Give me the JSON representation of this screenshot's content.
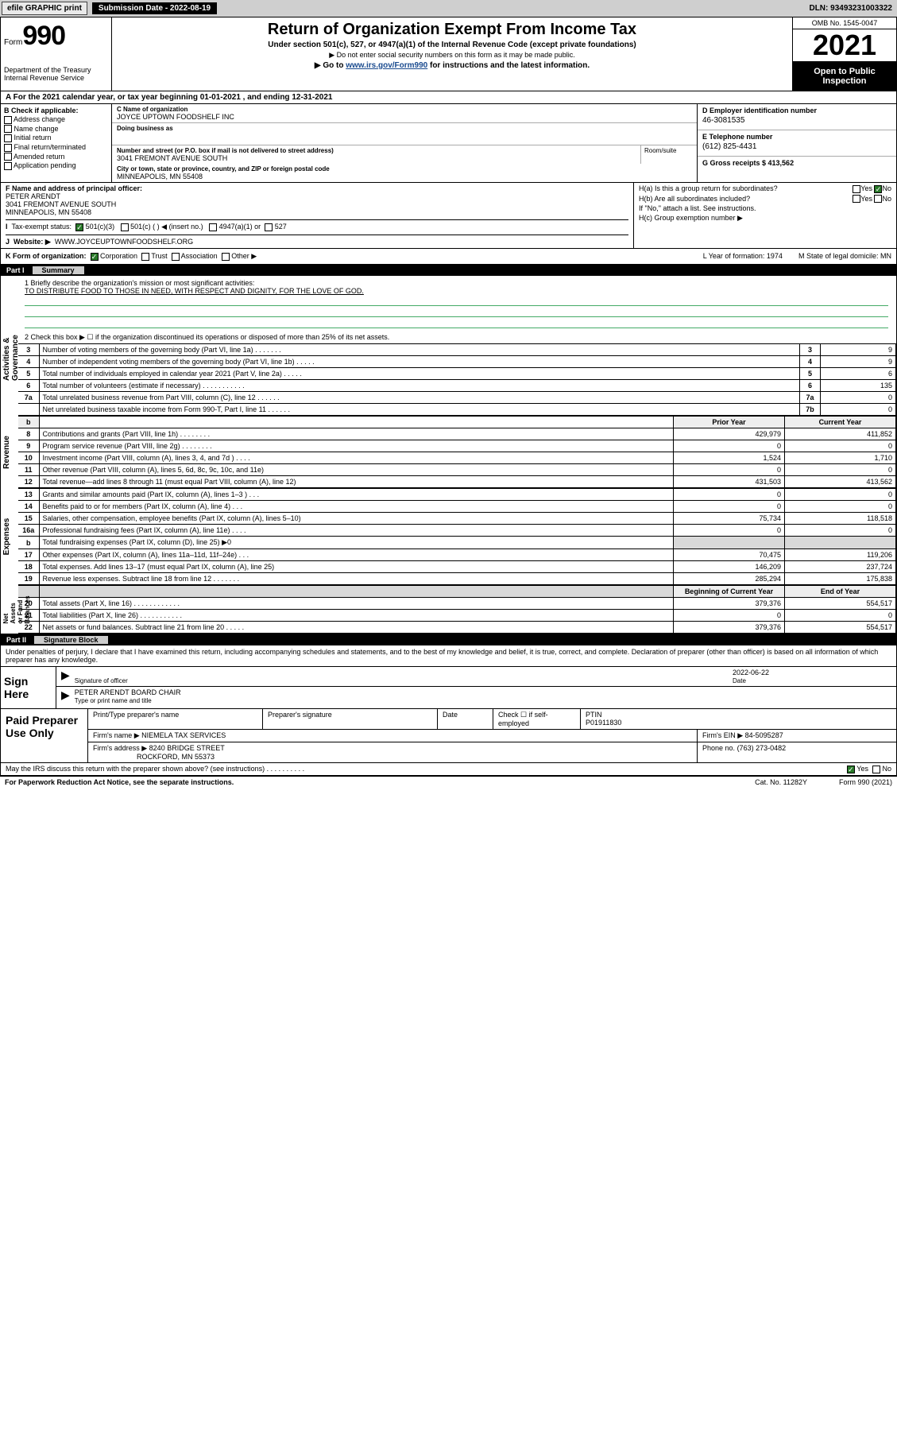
{
  "topbar": {
    "efile": "efile GRAPHIC print",
    "submission_label": "Submission Date - 2022-08-19",
    "dln_label": "DLN: 93493231003322"
  },
  "header": {
    "form_word": "Form",
    "form_num": "990",
    "dept": "Department of the Treasury\nInternal Revenue Service",
    "title": "Return of Organization Exempt From Income Tax",
    "subtitle": "Under section 501(c), 527, or 4947(a)(1) of the Internal Revenue Code (except private foundations)",
    "note1": "▶ Do not enter social security numbers on this form as it may be made public.",
    "note2_pre": "▶ Go to ",
    "note2_link": "www.irs.gov/Form990",
    "note2_post": " for instructions and the latest information.",
    "omb": "OMB No. 1545-0047",
    "year": "2021",
    "inspect": "Open to Public Inspection"
  },
  "lineA": "A For the 2021 calendar year, or tax year beginning 01-01-2021   , and ending 12-31-2021",
  "colB": {
    "header": "B Check if applicable:",
    "opts": [
      "Address change",
      "Name change",
      "Initial return",
      "Final return/terminated",
      "Amended return",
      "Application pending"
    ]
  },
  "colC": {
    "name_label": "C Name of organization",
    "name": "JOYCE UPTOWN FOODSHELF INC",
    "dba_label": "Doing business as",
    "dba": "",
    "street_label": "Number and street (or P.O. box if mail is not delivered to street address)",
    "street": "3041 FREMONT AVENUE SOUTH",
    "room_label": "Room/suite",
    "city_label": "City or town, state or province, country, and ZIP or foreign postal code",
    "city": "MINNEAPOLIS, MN  55408"
  },
  "colD": {
    "d_label": "D Employer identification number",
    "d_val": "46-3081535",
    "e_label": "E Telephone number",
    "e_val": "(612) 825-4431",
    "g_label": "G Gross receipts $ 413,562"
  },
  "F": {
    "label": "F  Name and address of principal officer:",
    "name": "PETER ARENDT",
    "addr1": "3041 FREMONT AVENUE SOUTH",
    "addr2": "MINNEAPOLIS, MN  55408"
  },
  "I": {
    "label": "Tax-exempt status:",
    "o1": "501(c)(3)",
    "o2": "501(c) (   ) ◀ (insert no.)",
    "o3": "4947(a)(1) or",
    "o4": "527"
  },
  "J": {
    "label": "Website: ▶",
    "val": "WWW.JOYCEUPTOWNFOODSHELF.ORG"
  },
  "H": {
    "ha": "H(a)  Is this a group return for subordinates?",
    "ha_no": "No",
    "hb": "H(b)  Are all subordinates included?",
    "hb_note": "If \"No,\" attach a list. See instructions.",
    "hc": "H(c)  Group exemption number ▶"
  },
  "K": {
    "label": "K Form of organization:",
    "opts": [
      "Corporation",
      "Trust",
      "Association",
      "Other ▶"
    ],
    "L": "L Year of formation: 1974",
    "M": "M State of legal domicile: MN"
  },
  "partI": {
    "label": "Part I",
    "title": "Summary"
  },
  "mission": {
    "q1": "1  Briefly describe the organization's mission or most significant activities:",
    "text": "TO DISTRIBUTE FOOD TO THOSE IN NEED, WITH RESPECT AND DIGNITY, FOR THE LOVE OF GOD.",
    "q2": "2   Check this box ▶ ☐  if the organization discontinued its operations or disposed of more than 25% of its net assets."
  },
  "gov_rows": [
    {
      "n": "3",
      "d": "Number of voting members of the governing body (Part VI, line 1a)   .   .   .   .   .   .   .",
      "box": "3",
      "v": "9"
    },
    {
      "n": "4",
      "d": "Number of independent voting members of the governing body (Part VI, line 1b)  .   .   .   .   .",
      "box": "4",
      "v": "9"
    },
    {
      "n": "5",
      "d": "Total number of individuals employed in calendar year 2021 (Part V, line 2a)   .   .   .   .   .",
      "box": "5",
      "v": "6"
    },
    {
      "n": "6",
      "d": "Total number of volunteers (estimate if necessary)  .   .   .   .   .   .   .   .   .   .   .",
      "box": "6",
      "v": "135"
    },
    {
      "n": "7a",
      "d": "Total unrelated business revenue from Part VIII, column (C), line 12  .   .   .   .   .   .",
      "box": "7a",
      "v": "0"
    },
    {
      "n": "",
      "d": "Net unrelated business taxable income from Form 990-T, Part I, line 11  .   .   .   .   .   .",
      "box": "7b",
      "v": "0"
    }
  ],
  "rev_head": {
    "b": "b",
    "prior": "Prior Year",
    "curr": "Current Year"
  },
  "rev_rows": [
    {
      "n": "8",
      "d": "Contributions and grants (Part VIII, line 1h)   .   .   .   .   .   .   .   .",
      "p": "429,979",
      "c": "411,852"
    },
    {
      "n": "9",
      "d": "Program service revenue (Part VIII, line 2g)   .   .   .   .   .   .   .   .",
      "p": "0",
      "c": "0"
    },
    {
      "n": "10",
      "d": "Investment income (Part VIII, column (A), lines 3, 4, and 7d )   .   .   .   .",
      "p": "1,524",
      "c": "1,710"
    },
    {
      "n": "11",
      "d": "Other revenue (Part VIII, column (A), lines 5, 6d, 8c, 9c, 10c, and 11e)",
      "p": "0",
      "c": "0"
    },
    {
      "n": "12",
      "d": "Total revenue—add lines 8 through 11 (must equal Part VIII, column (A), line 12)",
      "p": "431,503",
      "c": "413,562"
    }
  ],
  "exp_rows": [
    {
      "n": "13",
      "d": "Grants and similar amounts paid (Part IX, column (A), lines 1–3 )   .   .   .",
      "p": "0",
      "c": "0"
    },
    {
      "n": "14",
      "d": "Benefits paid to or for members (Part IX, column (A), line 4)   .   .   .",
      "p": "0",
      "c": "0"
    },
    {
      "n": "15",
      "d": "Salaries, other compensation, employee benefits (Part IX, column (A), lines 5–10)",
      "p": "75,734",
      "c": "118,518"
    },
    {
      "n": "16a",
      "d": "Professional fundraising fees (Part IX, column (A), line 11e)   .   .   .   .",
      "p": "0",
      "c": "0"
    },
    {
      "n": "b",
      "d": "Total fundraising expenses (Part IX, column (D), line 25) ▶0",
      "p": "",
      "c": "",
      "shade": true
    },
    {
      "n": "17",
      "d": "Other expenses (Part IX, column (A), lines 11a–11d, 11f–24e)   .   .   .",
      "p": "70,475",
      "c": "119,206"
    },
    {
      "n": "18",
      "d": "Total expenses. Add lines 13–17 (must equal Part IX, column (A), line 25)",
      "p": "146,209",
      "c": "237,724"
    },
    {
      "n": "19",
      "d": "Revenue less expenses. Subtract line 18 from line 12  .   .   .   .   .   .   .",
      "p": "285,294",
      "c": "175,838"
    }
  ],
  "na_head": {
    "prior": "Beginning of Current Year",
    "curr": "End of Year"
  },
  "na_rows": [
    {
      "n": "20",
      "d": "Total assets (Part X, line 16)  .   .   .   .   .   .   .   .   .   .   .   .",
      "p": "379,376",
      "c": "554,517"
    },
    {
      "n": "21",
      "d": "Total liabilities (Part X, line 26)   .   .   .   .   .   .   .   .   .   .   .",
      "p": "0",
      "c": "0"
    },
    {
      "n": "22",
      "d": "Net assets or fund balances. Subtract line 21 from line 20   .   .   .   .   .",
      "p": "379,376",
      "c": "554,517"
    }
  ],
  "partII": {
    "label": "Part II",
    "title": "Signature Block"
  },
  "penalty": "Under penalties of perjury, I declare that I have examined this return, including accompanying schedules and statements, and to the best of my knowledge and belief, it is true, correct, and complete. Declaration of preparer (other than officer) is based on all information of which preparer has any knowledge.",
  "sign": {
    "label": "Sign Here",
    "sig_of": "Signature of officer",
    "date": "2022-06-22",
    "date_lbl": "Date",
    "name": "PETER ARENDT  BOARD CHAIR",
    "name_lbl": "Type or print name and title"
  },
  "paid": {
    "label": "Paid Preparer Use Only",
    "h1": "Print/Type preparer's name",
    "h2": "Preparer's signature",
    "h3": "Date",
    "h4_a": "Check ☐ if self-employed",
    "h4_b": "PTIN",
    "ptin": "P01911830",
    "firm_name_lbl": "Firm's name     ▶",
    "firm_name": "NIEMELA TAX SERVICES",
    "firm_ein_lbl": "Firm's EIN ▶",
    "firm_ein": "84-5095287",
    "firm_addr_lbl": "Firm's address ▶",
    "firm_addr1": "8240 BRIDGE STREET",
    "firm_addr2": "ROCKFORD, MN  55373",
    "phone_lbl": "Phone no.",
    "phone": "(763) 273-0482"
  },
  "discuss": {
    "q": "May the IRS discuss this return with the preparer shown above? (see instructions)   .   .   .   .   .   .   .   .   .   .",
    "yes": "Yes",
    "no": "No"
  },
  "footer": {
    "left": "For Paperwork Reduction Act Notice, see the separate instructions.",
    "mid": "Cat. No. 11282Y",
    "right": "Form 990 (2021)"
  },
  "vlabels": {
    "gov": "Activities & Governance",
    "rev": "Revenue",
    "exp": "Expenses",
    "na": "Net Assets or Fund Balances"
  }
}
